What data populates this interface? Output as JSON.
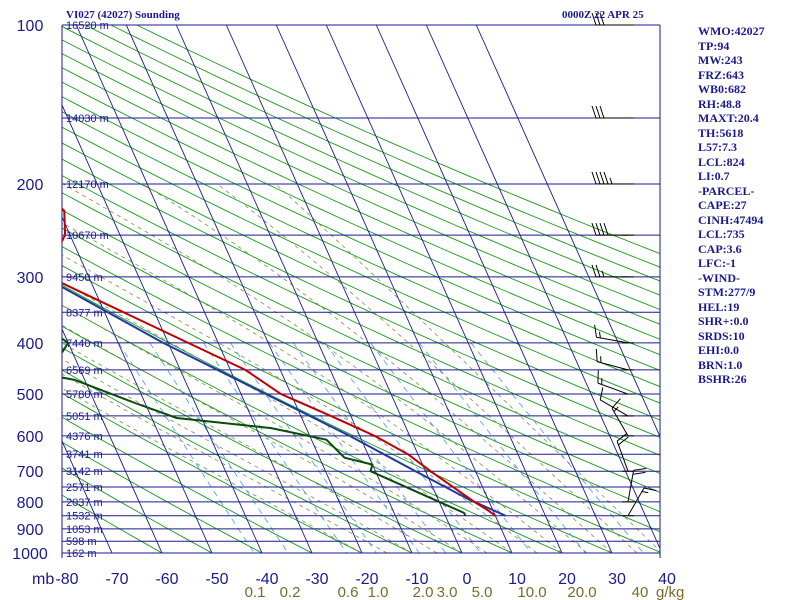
{
  "header": {
    "left": "VI027 (42027) Sounding",
    "right": "0000Z 22 APR 25"
  },
  "info_panel": [
    "WMO:42027",
    "TP:94",
    "MW:243",
    "FRZ:643",
    "WB0:682",
    "RH:48.8",
    "MAXT:20.4",
    "TH:5618",
    "L57:7.3",
    "LCL:824",
    "LI:0.7",
    "-PARCEL-",
    "CAPE:27",
    "CINH:47494",
    "LCL:735",
    "CAP:3.6",
    "LFC:-1",
    "-WIND-",
    "STM:277/9",
    "HEL:19",
    "SHR+:0.0",
    "SRDS:10",
    "EHI:0.0",
    "BRN:1.0",
    "BSHR:26"
  ],
  "colors": {
    "isobar": "#1a1a8c",
    "isotherm": "#1a1a8c",
    "dry_adiabat": "#1a9a1a",
    "moist_adiabat": "#8a8a55",
    "mixing_ratio": "#4a9be0",
    "temperature": "#c00000",
    "dewpoint": "#0a4a0a",
    "parcel": "#1c3ca0",
    "text": "#1a1a8c",
    "mixing_label": "#7a6a2a",
    "wind": "#000000"
  },
  "chart_data": {
    "type": "skew-t",
    "pressure_unit": "mb",
    "mixing_ratio_unit": "g/kg",
    "temp_range_c": [
      -80,
      50
    ],
    "pressure_range_mb": [
      100,
      1000
    ],
    "pressure_levels": [
      "100",
      "200",
      "300",
      "400",
      "500",
      "600",
      "700",
      "800",
      "900",
      "1000"
    ],
    "temperature_ticks": [
      "-80",
      "-70",
      "-60",
      "-50",
      "-40",
      "-30",
      "-20",
      "-10",
      "0",
      "10",
      "20",
      "30",
      "40"
    ],
    "mixing_ratio_labels": [
      "0.1",
      "0.2",
      "0.6",
      "1.0",
      "2.0",
      "3.0",
      "5.0",
      "10.0",
      "20.0",
      "40"
    ],
    "heights": [
      {
        "p": 100,
        "label": "16520 m"
      },
      {
        "p": 150,
        "label": "14030 m"
      },
      {
        "p": 200,
        "label": "12170 m"
      },
      {
        "p": 250,
        "label": "10670 m"
      },
      {
        "p": 300,
        "label": "9450 m"
      },
      {
        "p": 350,
        "label": "8377 m"
      },
      {
        "p": 400,
        "label": "7440 m"
      },
      {
        "p": 450,
        "label": "6569 m"
      },
      {
        "p": 500,
        "label": "5780 m"
      },
      {
        "p": 550,
        "label": "5051 m"
      },
      {
        "p": 600,
        "label": "4376 m"
      },
      {
        "p": 650,
        "label": "3741 m"
      },
      {
        "p": 700,
        "label": "3142 m"
      },
      {
        "p": 750,
        "label": "2571 m"
      },
      {
        "p": 800,
        "label": "2037 m"
      },
      {
        "p": 850,
        "label": "1532 m"
      },
      {
        "p": 900,
        "label": "1053 m"
      },
      {
        "p": 950,
        "label": "598 m"
      },
      {
        "p": 1000,
        "label": "162 m"
      }
    ],
    "temperature_profile": [
      [
        100,
        -71
      ],
      [
        150,
        -68
      ],
      [
        175,
        -57
      ],
      [
        200,
        -52
      ],
      [
        225,
        -49
      ],
      [
        250,
        -51
      ],
      [
        280,
        -56
      ],
      [
        300,
        -58
      ],
      [
        400,
        -36
      ],
      [
        450,
        -27
      ],
      [
        500,
        -22
      ],
      [
        550,
        -14
      ],
      [
        600,
        -7
      ],
      [
        650,
        -2
      ],
      [
        700,
        1
      ],
      [
        800,
        7
      ],
      [
        830,
        9
      ],
      [
        850,
        10
      ]
    ],
    "dewpoint_profile": [
      [
        240,
        -85
      ],
      [
        265,
        -84
      ],
      [
        300,
        -73
      ],
      [
        400,
        -60
      ],
      [
        460,
        -67
      ],
      [
        470,
        -62
      ],
      [
        520,
        -52
      ],
      [
        555,
        -45
      ],
      [
        580,
        -27
      ],
      [
        610,
        -17
      ],
      [
        660,
        -15
      ],
      [
        680,
        -10
      ],
      [
        700,
        -11
      ],
      [
        840,
        4
      ],
      [
        850,
        4
      ]
    ],
    "parcel_profile": [
      [
        150,
        -101
      ],
      [
        200,
        -85
      ],
      [
        300,
        -59
      ],
      [
        400,
        -41
      ],
      [
        500,
        -25
      ],
      [
        600,
        -12
      ],
      [
        700,
        -2
      ],
      [
        790,
        6
      ],
      [
        850,
        12
      ]
    ],
    "wind_barbs": [
      {
        "p": 100,
        "dir": 270,
        "spd": 30
      },
      {
        "p": 150,
        "dir": 270,
        "spd": 30
      },
      {
        "p": 200,
        "dir": 270,
        "spd": 45
      },
      {
        "p": 250,
        "dir": 270,
        "spd": 40
      },
      {
        "p": 300,
        "dir": 270,
        "spd": 25
      },
      {
        "p": 400,
        "dir": 280,
        "spd": 15
      },
      {
        "p": 450,
        "dir": 285,
        "spd": 15
      },
      {
        "p": 500,
        "dir": 290,
        "spd": 15
      },
      {
        "p": 550,
        "dir": 300,
        "spd": 10
      },
      {
        "p": 600,
        "dir": 330,
        "spd": 15
      },
      {
        "p": 700,
        "dir": 340,
        "spd": 20
      },
      {
        "p": 800,
        "dir": 10,
        "spd": 20
      },
      {
        "p": 850,
        "dir": 30,
        "spd": 15
      }
    ]
  }
}
